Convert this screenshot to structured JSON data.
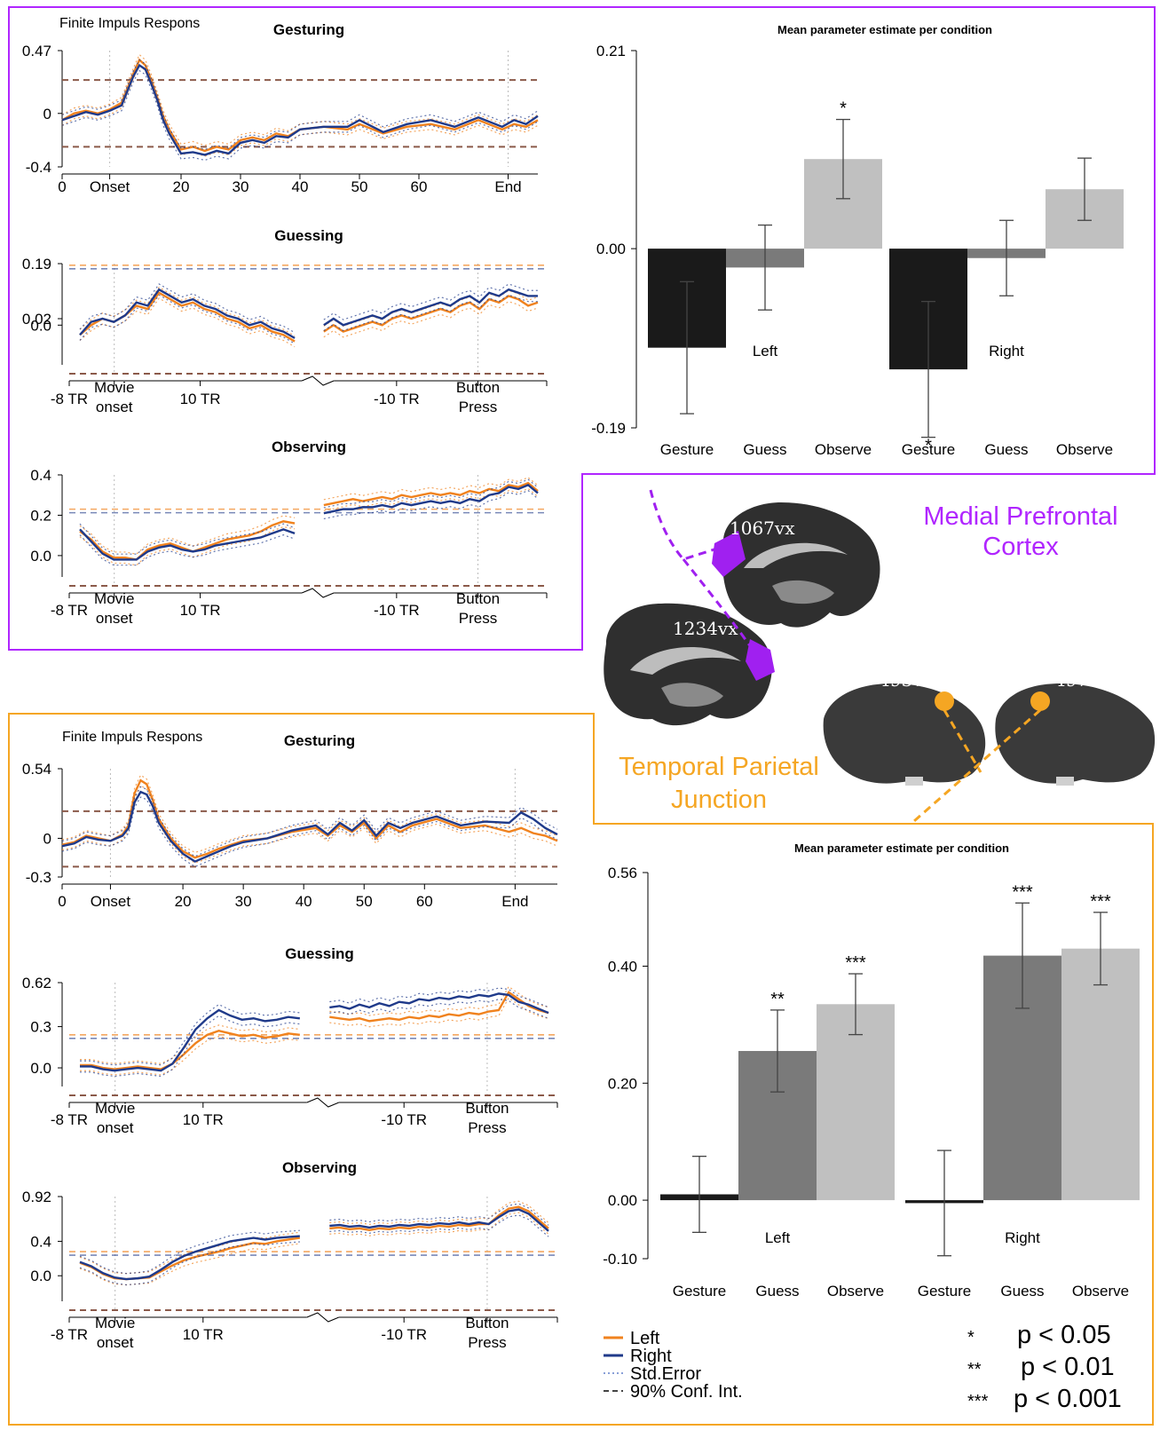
{
  "figure": {
    "mpfc_label_line1": "Medial Prefrontal",
    "mpfc_label_line2": "Cortex",
    "tpj_label_line1": "Temporal Parietal",
    "tpj_label_line2": "Junction",
    "fir_label": "Finite Impuls Respons",
    "legend": {
      "left": "Left",
      "right": "Right",
      "stderr": "Std.Error",
      "ci": "90% Conf. Int."
    },
    "significance": [
      {
        "stars": "*",
        "text": "p < 0.05"
      },
      {
        "stars": "**",
        "text": "p < 0.01"
      },
      {
        "stars": "***",
        "text": "p < 0.001"
      }
    ]
  },
  "colors": {
    "mpfc_frame": "#b026ff",
    "tpj_frame": "#f5a623",
    "left_series": "#f0821e",
    "right_series": "#1f3a8a",
    "ci_line": "#8b5a4a",
    "bar_gesture": "#1a1a1a",
    "bar_guess": "#7a7a7a",
    "bar_observe": "#c0c0c0",
    "brain_dark": "#2b2b2b"
  },
  "brain_labels": [
    "1067vx",
    "1234vx",
    "493vx",
    "497vx"
  ],
  "chart_data": [
    {
      "id": "mpfc-gesturing",
      "type": "line",
      "title": "Gesturing",
      "region": "Medial Prefrontal Cortex",
      "xtick_labels": [
        "0",
        "Onset",
        "20",
        "30",
        "40",
        "50",
        "60",
        "End"
      ],
      "xtick_values": [
        0,
        8,
        20,
        30,
        40,
        50,
        60,
        75
      ],
      "ytick_labels": [
        "0.47",
        "0",
        "-0.4"
      ],
      "ytick_values": [
        0.47,
        0,
        -0.4
      ],
      "ylim": [
        -0.4,
        0.47
      ],
      "xlim": [
        0,
        80
      ],
      "onset_x": 8,
      "end_x": 75,
      "ci": [
        0.25,
        -0.25
      ],
      "series": [
        {
          "name": "Left",
          "x": [
            0,
            2,
            4,
            6,
            8,
            10,
            12,
            13,
            14,
            15,
            16,
            17,
            18,
            20,
            22,
            24,
            26,
            28,
            30,
            32,
            34,
            36,
            38,
            40,
            44,
            48,
            50,
            54,
            58,
            62,
            66,
            70,
            74,
            76,
            78,
            80
          ],
          "y": [
            -0.05,
            0.0,
            0.02,
            0.0,
            0.03,
            0.08,
            0.3,
            0.4,
            0.36,
            0.25,
            0.12,
            -0.02,
            -0.12,
            -0.27,
            -0.25,
            -0.28,
            -0.25,
            -0.27,
            -0.2,
            -0.18,
            -0.2,
            -0.15,
            -0.17,
            -0.12,
            -0.1,
            -0.12,
            -0.08,
            -0.15,
            -0.1,
            -0.08,
            -0.12,
            -0.05,
            -0.12,
            -0.08,
            -0.1,
            -0.05
          ]
        },
        {
          "name": "Right",
          "x": [
            0,
            2,
            4,
            6,
            8,
            10,
            12,
            13,
            14,
            15,
            16,
            17,
            18,
            20,
            22,
            24,
            26,
            28,
            30,
            32,
            34,
            36,
            38,
            40,
            44,
            48,
            50,
            54,
            58,
            62,
            66,
            70,
            74,
            76,
            78,
            80
          ],
          "y": [
            -0.05,
            -0.02,
            0.01,
            -0.01,
            0.02,
            0.06,
            0.28,
            0.36,
            0.33,
            0.22,
            0.1,
            -0.05,
            -0.15,
            -0.3,
            -0.29,
            -0.31,
            -0.28,
            -0.3,
            -0.22,
            -0.2,
            -0.22,
            -0.17,
            -0.18,
            -0.12,
            -0.1,
            -0.1,
            -0.05,
            -0.14,
            -0.08,
            -0.05,
            -0.1,
            -0.03,
            -0.1,
            -0.05,
            -0.08,
            -0.02
          ]
        }
      ]
    },
    {
      "id": "mpfc-guessing",
      "type": "line",
      "title": "Guessing",
      "region": "Medial Prefrontal Cortex",
      "xtick_labels": [
        "-8 TR",
        "Movie onset",
        "10 TR",
        "-10 TR",
        "Button Press"
      ],
      "ytick_labels": [
        "0.19",
        "0.02",
        "0.0"
      ],
      "ytick_values": [
        0.19,
        0.02,
        0.0
      ],
      "ylim": [
        -0.15,
        0.19
      ],
      "ci": [
        0.185,
        -0.15
      ],
      "series": [
        {
          "name": "Left",
          "seg1": [
            -0.03,
            0.0,
            0.02,
            0.01,
            0.03,
            0.06,
            0.05,
            0.1,
            0.08,
            0.06,
            0.07,
            0.05,
            0.04,
            0.02,
            0.01,
            -0.01,
            0.0,
            -0.02,
            -0.03,
            -0.05
          ],
          "seg2": [
            -0.02,
            0.0,
            -0.02,
            -0.01,
            0.0,
            0.01,
            0.0,
            0.02,
            0.03,
            0.02,
            0.03,
            0.04,
            0.05,
            0.04,
            0.06,
            0.07,
            0.05,
            0.08,
            0.07,
            0.09,
            0.08,
            0.06,
            0.07
          ]
        },
        {
          "name": "Right",
          "seg1": [
            -0.03,
            0.01,
            0.02,
            0.01,
            0.03,
            0.07,
            0.06,
            0.11,
            0.09,
            0.07,
            0.08,
            0.06,
            0.05,
            0.03,
            0.02,
            0.0,
            0.01,
            -0.01,
            -0.02,
            -0.04
          ],
          "seg2": [
            0.0,
            0.02,
            0.0,
            0.01,
            0.02,
            0.03,
            0.02,
            0.04,
            0.05,
            0.04,
            0.05,
            0.06,
            0.07,
            0.06,
            0.08,
            0.09,
            0.07,
            0.1,
            0.09,
            0.11,
            0.1,
            0.09,
            0.09
          ]
        }
      ]
    },
    {
      "id": "mpfc-observing",
      "type": "line",
      "title": "Observing",
      "region": "Medial Prefrontal Cortex",
      "xtick_labels": [
        "-8 TR",
        "Movie onset",
        "10 TR",
        "-10 TR",
        "Button Press"
      ],
      "ytick_labels": [
        "0.4",
        "0.2",
        "0.0"
      ],
      "ytick_values": [
        0.4,
        0.2,
        0.0
      ],
      "ylim": [
        -0.15,
        0.4
      ],
      "ci": [
        0.23,
        -0.15
      ],
      "series": [
        {
          "name": "Left",
          "seg1": [
            0.12,
            0.08,
            0.02,
            -0.01,
            -0.01,
            -0.02,
            0.03,
            0.05,
            0.06,
            0.04,
            0.02,
            0.04,
            0.06,
            0.08,
            0.09,
            0.1,
            0.12,
            0.15,
            0.17,
            0.16
          ],
          "seg2": [
            0.25,
            0.26,
            0.27,
            0.28,
            0.27,
            0.28,
            0.29,
            0.28,
            0.3,
            0.29,
            0.3,
            0.31,
            0.3,
            0.31,
            0.3,
            0.32,
            0.31,
            0.33,
            0.32,
            0.35,
            0.34,
            0.36,
            0.32
          ]
        },
        {
          "name": "Right",
          "seg1": [
            0.13,
            0.07,
            0.01,
            -0.02,
            -0.02,
            -0.02,
            0.02,
            0.04,
            0.05,
            0.03,
            0.02,
            0.03,
            0.05,
            0.06,
            0.07,
            0.08,
            0.09,
            0.11,
            0.13,
            0.11
          ],
          "seg2": [
            0.21,
            0.22,
            0.23,
            0.23,
            0.24,
            0.24,
            0.25,
            0.24,
            0.26,
            0.25,
            0.26,
            0.27,
            0.26,
            0.27,
            0.26,
            0.28,
            0.27,
            0.3,
            0.31,
            0.34,
            0.33,
            0.35,
            0.31
          ]
        }
      ]
    },
    {
      "id": "mpfc-bars",
      "type": "bar",
      "title": "Mean parameter estimate per condition",
      "region": "Medial Prefrontal Cortex",
      "groups": [
        "Left",
        "Right"
      ],
      "categories": [
        "Gesture",
        "Guess",
        "Observe"
      ],
      "ytick_labels": [
        "0.21",
        "0.00",
        "-0.19"
      ],
      "ytick_values": [
        0.21,
        0.0,
        -0.19
      ],
      "ylim": [
        -0.19,
        0.21
      ],
      "series": [
        {
          "name": "Left",
          "values": [
            -0.105,
            -0.02,
            0.095
          ],
          "errors": [
            0.07,
            0.045,
            0.042
          ],
          "stars": [
            "",
            "",
            "*"
          ]
        },
        {
          "name": "Right",
          "values": [
            -0.128,
            -0.01,
            0.063
          ],
          "errors": [
            0.072,
            0.04,
            0.033
          ],
          "stars": [
            "*",
            "",
            ""
          ]
        }
      ]
    },
    {
      "id": "tpj-gesturing",
      "type": "line",
      "title": "Gesturing",
      "region": "Temporal Parietal Junction",
      "xtick_labels": [
        "0",
        "Onset",
        "20",
        "30",
        "40",
        "50",
        "60",
        "End"
      ],
      "xtick_values": [
        0,
        8,
        20,
        30,
        40,
        50,
        60,
        75
      ],
      "ytick_labels": [
        "0.54",
        "0",
        "-0.3"
      ],
      "ytick_values": [
        0.54,
        0,
        -0.3
      ],
      "ylim": [
        -0.3,
        0.54
      ],
      "xlim": [
        0,
        82
      ],
      "onset_x": 8,
      "end_x": 75,
      "ci": [
        0.21,
        -0.22
      ],
      "series": [
        {
          "name": "Left",
          "x": [
            0,
            2,
            4,
            6,
            8,
            10,
            11,
            12,
            13,
            14,
            15,
            16,
            18,
            20,
            22,
            24,
            26,
            28,
            30,
            34,
            38,
            42,
            44,
            46,
            48,
            50,
            52,
            54,
            56,
            58,
            62,
            66,
            70,
            74,
            76,
            78,
            80,
            82
          ],
          "y": [
            -0.05,
            -0.03,
            0.02,
            0.0,
            -0.02,
            0.03,
            0.1,
            0.35,
            0.45,
            0.42,
            0.3,
            0.15,
            0.0,
            -0.1,
            -0.15,
            -0.12,
            -0.08,
            -0.05,
            -0.02,
            0.0,
            0.05,
            0.08,
            0.02,
            0.1,
            0.05,
            0.12,
            0.0,
            0.1,
            0.05,
            0.1,
            0.15,
            0.08,
            0.1,
            0.05,
            0.08,
            0.04,
            0.02,
            -0.02
          ]
        },
        {
          "name": "Right",
          "x": [
            0,
            2,
            4,
            6,
            8,
            10,
            11,
            12,
            13,
            14,
            15,
            16,
            18,
            20,
            22,
            24,
            26,
            28,
            30,
            34,
            38,
            42,
            44,
            46,
            48,
            50,
            52,
            54,
            56,
            58,
            62,
            66,
            70,
            74,
            76,
            78,
            80,
            82
          ],
          "y": [
            -0.06,
            -0.04,
            0.01,
            -0.01,
            -0.02,
            0.02,
            0.08,
            0.28,
            0.36,
            0.34,
            0.25,
            0.12,
            -0.02,
            -0.12,
            -0.18,
            -0.14,
            -0.1,
            -0.06,
            -0.03,
            0.0,
            0.06,
            0.1,
            0.03,
            0.12,
            0.06,
            0.14,
            0.02,
            0.12,
            0.08,
            0.12,
            0.17,
            0.1,
            0.13,
            0.12,
            0.2,
            0.15,
            0.08,
            0.03
          ]
        }
      ]
    },
    {
      "id": "tpj-guessing",
      "type": "line",
      "title": "Guessing",
      "region": "Temporal Parietal Junction",
      "xtick_labels": [
        "-8 TR",
        "Movie onset",
        "10 TR",
        "-10 TR",
        "Button Press"
      ],
      "ytick_labels": [
        "0.62",
        "0.3",
        "0.0"
      ],
      "ytick_values": [
        0.62,
        0.3,
        0.0
      ],
      "ylim": [
        -0.2,
        0.62
      ],
      "ci": [
        0.24,
        -0.2
      ],
      "series": [
        {
          "name": "Left",
          "seg1": [
            0.02,
            0.02,
            0.0,
            -0.01,
            0.0,
            0.01,
            0.0,
            -0.01,
            0.03,
            0.1,
            0.18,
            0.24,
            0.27,
            0.25,
            0.23,
            0.24,
            0.22,
            0.23,
            0.25,
            0.24
          ],
          "seg2": [
            0.37,
            0.36,
            0.35,
            0.36,
            0.34,
            0.35,
            0.36,
            0.35,
            0.37,
            0.36,
            0.38,
            0.37,
            0.39,
            0.38,
            0.4,
            0.39,
            0.41,
            0.42,
            0.55,
            0.5,
            0.45,
            0.42,
            0.4
          ]
        },
        {
          "name": "Right",
          "seg1": [
            0.01,
            0.01,
            -0.01,
            -0.02,
            -0.01,
            0.0,
            -0.01,
            -0.02,
            0.03,
            0.15,
            0.28,
            0.36,
            0.42,
            0.38,
            0.35,
            0.36,
            0.34,
            0.35,
            0.37,
            0.36
          ],
          "seg2": [
            0.44,
            0.45,
            0.43,
            0.46,
            0.44,
            0.47,
            0.45,
            0.48,
            0.47,
            0.5,
            0.49,
            0.51,
            0.5,
            0.52,
            0.51,
            0.53,
            0.52,
            0.54,
            0.53,
            0.48,
            0.46,
            0.43,
            0.4
          ]
        }
      ]
    },
    {
      "id": "tpj-observing",
      "type": "line",
      "title": "Observing",
      "region": "Temporal Parietal Junction",
      "xtick_labels": [
        "-8 TR",
        "Movie onset",
        "10 TR",
        "-10 TR",
        "Button Press"
      ],
      "ytick_labels": [
        "0.92",
        "0.4",
        "0.0"
      ],
      "ytick_values": [
        0.92,
        0.4,
        0.0
      ],
      "ylim": [
        -0.4,
        0.92
      ],
      "ci": [
        0.28,
        -0.4
      ],
      "series": [
        {
          "name": "Left",
          "seg1": [
            0.15,
            0.1,
            0.02,
            -0.03,
            -0.04,
            -0.03,
            -0.02,
            0.05,
            0.12,
            0.18,
            0.22,
            0.25,
            0.28,
            0.32,
            0.35,
            0.38,
            0.37,
            0.4,
            0.42,
            0.44
          ],
          "seg2": [
            0.55,
            0.56,
            0.54,
            0.55,
            0.53,
            0.55,
            0.54,
            0.56,
            0.55,
            0.57,
            0.56,
            0.58,
            0.57,
            0.59,
            0.58,
            0.6,
            0.6,
            0.7,
            0.78,
            0.8,
            0.75,
            0.65,
            0.55
          ]
        },
        {
          "name": "Right",
          "seg1": [
            0.16,
            0.11,
            0.03,
            -0.02,
            -0.04,
            -0.03,
            -0.01,
            0.07,
            0.16,
            0.23,
            0.28,
            0.32,
            0.36,
            0.4,
            0.42,
            0.44,
            0.42,
            0.44,
            0.45,
            0.46
          ],
          "seg2": [
            0.58,
            0.59,
            0.57,
            0.58,
            0.56,
            0.58,
            0.57,
            0.59,
            0.58,
            0.6,
            0.59,
            0.61,
            0.6,
            0.62,
            0.6,
            0.62,
            0.6,
            0.68,
            0.75,
            0.77,
            0.72,
            0.62,
            0.52
          ]
        }
      ]
    },
    {
      "id": "tpj-bars",
      "type": "bar",
      "title": "Mean parameter estimate per condition",
      "region": "Temporal Parietal Junction",
      "groups": [
        "Left",
        "Right"
      ],
      "categories": [
        "Gesture",
        "Guess",
        "Observe"
      ],
      "ytick_labels": [
        "0.56",
        "0.40",
        "0.20",
        "0.00",
        "-0.10"
      ],
      "ytick_values": [
        0.56,
        0.4,
        0.2,
        0.0,
        -0.1
      ],
      "ylim": [
        -0.1,
        0.56
      ],
      "series": [
        {
          "name": "Left",
          "values": [
            0.01,
            0.255,
            0.335
          ],
          "errors": [
            0.065,
            0.07,
            0.052
          ],
          "stars": [
            "",
            "**",
            "***"
          ]
        },
        {
          "name": "Right",
          "values": [
            -0.005,
            0.418,
            0.43
          ],
          "errors": [
            0.09,
            0.09,
            0.062
          ],
          "stars": [
            "",
            "***",
            "***"
          ]
        }
      ]
    }
  ]
}
